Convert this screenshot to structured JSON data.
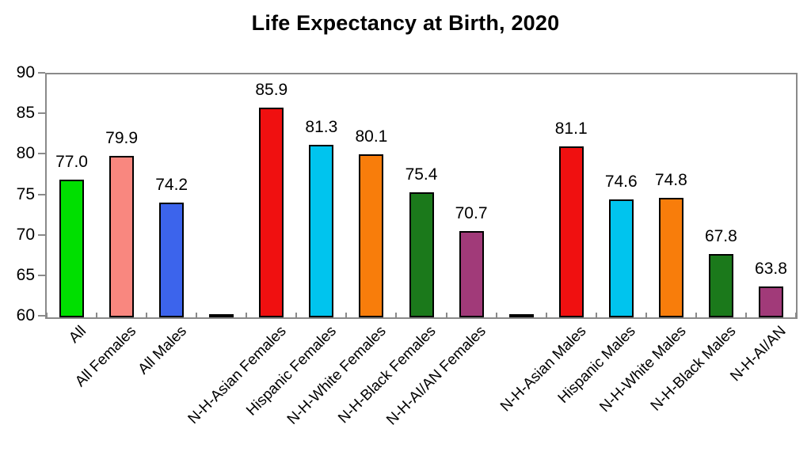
{
  "title": "Life Expectancy at Birth, 2020",
  "chart_data": {
    "type": "bar",
    "title": "Life Expectancy at Birth, 2020",
    "xlabel": "",
    "ylabel": "",
    "ylim": [
      60,
      90
    ],
    "yticks": [
      60,
      65,
      70,
      75,
      80,
      85,
      90
    ],
    "grid": false,
    "legend": false,
    "bar_border_color": "#000000",
    "frame_color": "#8a8a8a",
    "bars": [
      {
        "label": "All",
        "value": 77.0,
        "display": "77.0",
        "color": "#00df00",
        "spacer": false
      },
      {
        "label": "All Females",
        "value": 79.9,
        "display": "79.9",
        "color": "#f9877f",
        "spacer": false
      },
      {
        "label": "All Males",
        "value": 74.2,
        "display": "74.2",
        "color": "#3c64ec",
        "spacer": false
      },
      {
        "label": "",
        "value": 60.1,
        "display": "",
        "color": "#ffff00",
        "spacer": true
      },
      {
        "label": "N-H-Asian Females",
        "value": 85.9,
        "display": "85.9",
        "color": "#f01010",
        "spacer": false
      },
      {
        "label": "Hispanic Females",
        "value": 81.3,
        "display": "81.3",
        "color": "#00c4ee",
        "spacer": false
      },
      {
        "label": "N-H-White Females",
        "value": 80.1,
        "display": "80.1",
        "color": "#f87d0b",
        "spacer": false
      },
      {
        "label": "N-H-Black Females",
        "value": 75.4,
        "display": "75.4",
        "color": "#1b791b",
        "spacer": false
      },
      {
        "label": "N-H-AI/AN Females",
        "value": 70.7,
        "display": "70.7",
        "color": "#a13a79",
        "spacer": false
      },
      {
        "label": "",
        "value": 60.1,
        "display": "",
        "color": "#ffff00",
        "spacer": true
      },
      {
        "label": "N-H-Asian Males",
        "value": 81.1,
        "display": "81.1",
        "color": "#f01010",
        "spacer": false
      },
      {
        "label": "Hispanic Males",
        "value": 74.6,
        "display": "74.6",
        "color": "#00c4ee",
        "spacer": false
      },
      {
        "label": "N-H-White Males",
        "value": 74.8,
        "display": "74.8",
        "color": "#f87d0b",
        "spacer": false
      },
      {
        "label": "N-H-Black Males",
        "value": 67.8,
        "display": "67.8",
        "color": "#1b791b",
        "spacer": false
      },
      {
        "label": "N-H-AI/AN",
        "value": 63.8,
        "display": "63.8",
        "color": "#a13a79",
        "spacer": false
      }
    ]
  }
}
